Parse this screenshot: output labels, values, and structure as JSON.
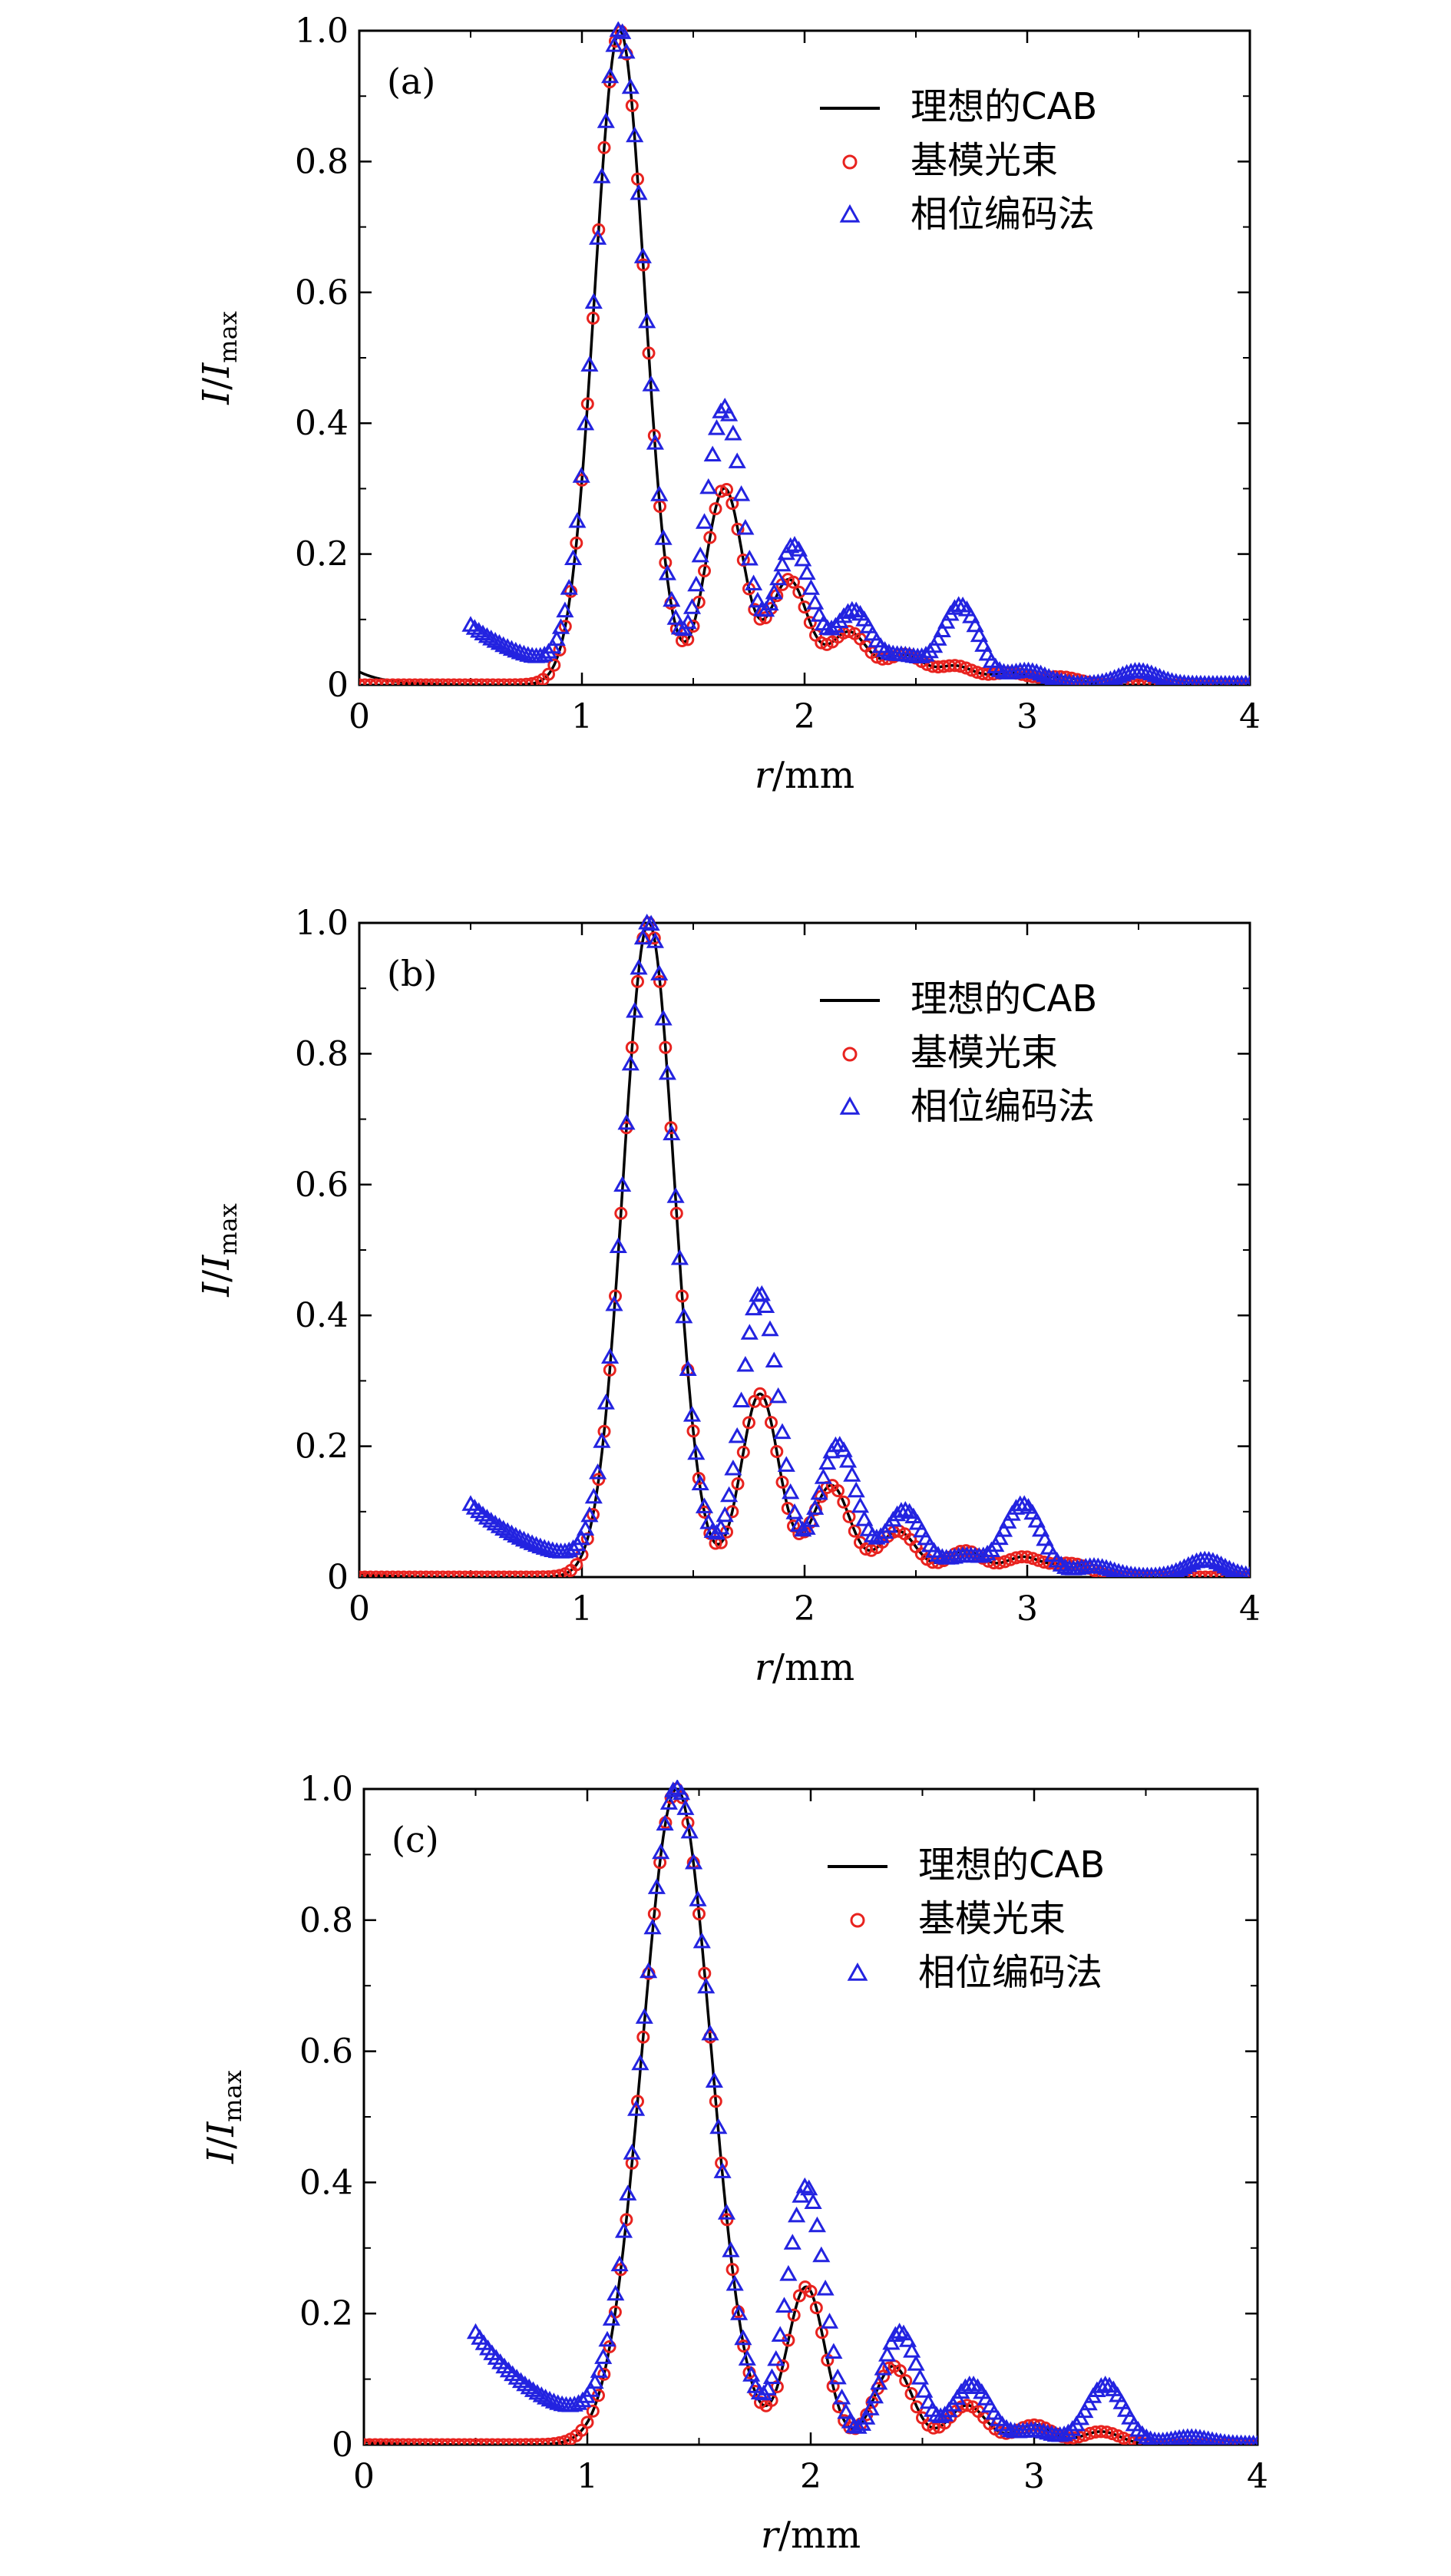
{
  "figure": {
    "panels": [
      {
        "id": "a",
        "label": "(a)"
      },
      {
        "id": "b",
        "label": "(b)"
      },
      {
        "id": "c",
        "label": "(c)"
      }
    ]
  },
  "chart_data": [
    {
      "type": "line",
      "panel_label": "(a)",
      "xlabel": "r/mm",
      "ylabel": "I/Imax",
      "xlim": [
        0,
        4
      ],
      "ylim": [
        0,
        1.0
      ],
      "xticks": [
        "0",
        "1",
        "2",
        "3",
        "4"
      ],
      "yticks": [
        "0",
        "0.2",
        "0.4",
        "0.6",
        "0.8",
        "1.0"
      ],
      "legend_position": "top-right",
      "grid": false,
      "colors": {
        "ideal": "#000000",
        "fundamental": "#e8231f",
        "phase": "#2323e0"
      },
      "series": [
        {
          "name": "理想的CAB",
          "marker": "line",
          "params": {
            "peak_x": 1.17,
            "first_zero_x": 1.46,
            "side_peaks": [
              [
                1.64,
                0.3
              ],
              [
                1.93,
                0.16
              ],
              [
                2.2,
                0.08
              ],
              [
                2.45,
                0.045
              ],
              [
                2.68,
                0.028
              ],
              [
                2.92,
                0.018
              ],
              [
                3.15,
                0.012
              ]
            ],
            "tail_start_x": 0.0,
            "tail_start_y": 0.02
          }
        },
        {
          "name": "基模光束",
          "marker": "circle",
          "params": {
            "peak_x": 1.17,
            "first_zero_x": 1.46,
            "side_peaks": [
              [
                1.64,
                0.3
              ],
              [
                1.93,
                0.16
              ],
              [
                2.2,
                0.08
              ],
              [
                2.45,
                0.045
              ],
              [
                2.68,
                0.028
              ],
              [
                2.92,
                0.018
              ],
              [
                3.15,
                0.012
              ]
            ],
            "start_x": 0.0,
            "end_x": 4.0
          }
        },
        {
          "name": "相位编码法",
          "marker": "triangle",
          "params": {
            "peak_x": 1.17,
            "first_zero_x": 1.46,
            "side_peaks": [
              [
                1.64,
                0.42
              ],
              [
                1.95,
                0.21
              ],
              [
                2.22,
                0.11
              ],
              [
                2.45,
                0.04
              ],
              [
                2.7,
                0.12
              ],
              [
                3.0,
                0.02
              ],
              [
                3.5,
                0.02
              ]
            ],
            "start_x": 0.5,
            "start_y": 0.09,
            "end_x": 4.0
          }
        }
      ]
    },
    {
      "type": "line",
      "panel_label": "(b)",
      "xlabel": "r/mm",
      "ylabel": "I/Imax",
      "xlim": [
        0,
        4
      ],
      "ylim": [
        0,
        1.0
      ],
      "xticks": [
        "0",
        "1",
        "2",
        "3",
        "4"
      ],
      "yticks": [
        "0",
        "0.2",
        "0.4",
        "0.6",
        "0.8",
        "1.0"
      ],
      "legend_position": "top-right",
      "grid": false,
      "colors": {
        "ideal": "#000000",
        "fundamental": "#e8231f",
        "phase": "#2323e0"
      },
      "series": [
        {
          "name": "理想的CAB",
          "marker": "line",
          "params": {
            "peak_x": 1.3,
            "first_zero_x": 1.6,
            "side_peaks": [
              [
                1.8,
                0.28
              ],
              [
                2.12,
                0.14
              ],
              [
                2.42,
                0.07
              ],
              [
                2.72,
                0.04
              ],
              [
                2.98,
                0.03
              ],
              [
                3.2,
                0.02
              ]
            ],
            "tail_start_x": 0.0,
            "tail_start_y": 0.005
          }
        },
        {
          "name": "基模光束",
          "marker": "circle",
          "params": {
            "peak_x": 1.3,
            "first_zero_x": 1.6,
            "side_peaks": [
              [
                1.8,
                0.28
              ],
              [
                2.12,
                0.14
              ],
              [
                2.42,
                0.07
              ],
              [
                2.72,
                0.04
              ],
              [
                2.98,
                0.03
              ],
              [
                3.2,
                0.02
              ]
            ],
            "start_x": 0.0,
            "end_x": 4.0
          }
        },
        {
          "name": "相位编码法",
          "marker": "triangle",
          "params": {
            "peak_x": 1.3,
            "first_zero_x": 1.6,
            "side_peaks": [
              [
                1.8,
                0.43
              ],
              [
                2.15,
                0.2
              ],
              [
                2.45,
                0.1
              ],
              [
                2.72,
                0.03
              ],
              [
                2.98,
                0.11
              ],
              [
                3.3,
                0.015
              ],
              [
                3.8,
                0.025
              ]
            ],
            "start_x": 0.5,
            "start_y": 0.11,
            "end_x": 4.0
          }
        }
      ]
    },
    {
      "type": "line",
      "panel_label": "(c)",
      "xlabel": "r/mm",
      "ylabel": "I/Imax",
      "xlim": [
        0,
        4
      ],
      "ylim": [
        0,
        1.0
      ],
      "xticks": [
        "0",
        "1",
        "2",
        "3",
        "4"
      ],
      "yticks": [
        "0",
        "0.2",
        "0.4",
        "0.6",
        "0.8",
        "1.0"
      ],
      "legend_position": "top-right",
      "grid": false,
      "colors": {
        "ideal": "#000000",
        "fundamental": "#e8231f",
        "phase": "#2323e0"
      },
      "series": [
        {
          "name": "理想的CAB",
          "marker": "line",
          "params": {
            "peak_x": 1.4,
            "first_zero_x": 1.8,
            "side_peaks": [
              [
                1.98,
                0.24
              ],
              [
                2.37,
                0.12
              ],
              [
                2.7,
                0.06
              ],
              [
                3.0,
                0.03
              ],
              [
                3.3,
                0.02
              ]
            ],
            "tail_start_x": 0.0,
            "tail_start_y": 0.005
          }
        },
        {
          "name": "基模光束",
          "marker": "circle",
          "params": {
            "peak_x": 1.4,
            "first_zero_x": 1.8,
            "side_peaks": [
              [
                1.98,
                0.24
              ],
              [
                2.37,
                0.12
              ],
              [
                2.7,
                0.06
              ],
              [
                3.0,
                0.03
              ],
              [
                3.3,
                0.02
              ]
            ],
            "start_x": 0.0,
            "end_x": 4.0
          }
        },
        {
          "name": "相位编码法",
          "marker": "triangle",
          "params": {
            "peak_x": 1.4,
            "first_zero_x": 1.8,
            "side_peaks": [
              [
                1.98,
                0.39
              ],
              [
                2.4,
                0.17
              ],
              [
                2.72,
                0.09
              ],
              [
                3.0,
                0.02
              ],
              [
                3.32,
                0.09
              ],
              [
                3.7,
                0.01
              ]
            ],
            "start_x": 0.5,
            "start_y": 0.17,
            "end_x": 4.0
          }
        }
      ]
    }
  ]
}
